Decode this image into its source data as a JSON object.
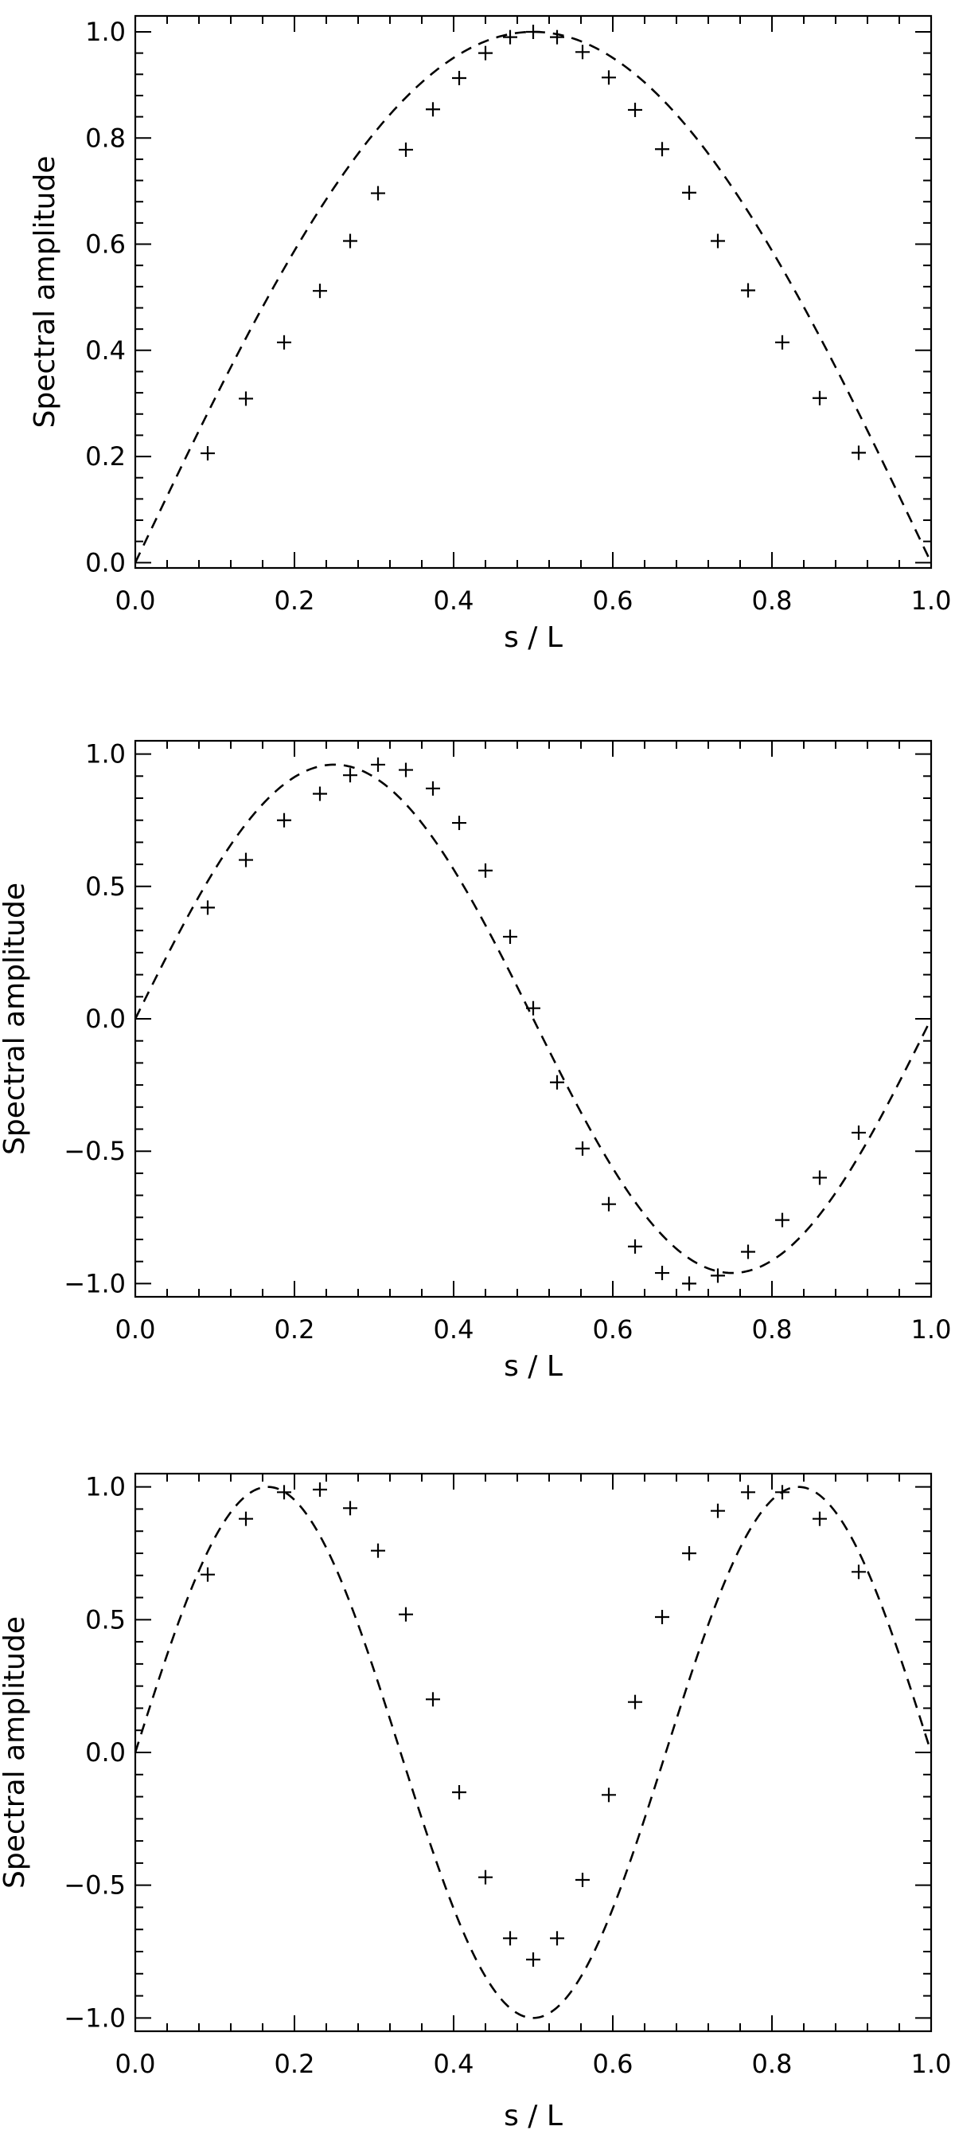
{
  "chart_data": [
    {
      "type": "scatter",
      "xlabel": "s / L",
      "ylabel": "Spectral amplitude",
      "xlim": [
        0,
        1
      ],
      "ylim": [
        -0.01,
        1.03
      ],
      "xticks": [
        "0.0",
        "0.2",
        "0.4",
        "0.6",
        "0.8",
        "1.0"
      ],
      "yticks": [
        "0.0",
        "0.2",
        "0.4",
        "0.6",
        "0.8",
        "1.0"
      ],
      "xtick_values": [
        0,
        0.2,
        0.4,
        0.6,
        0.8,
        1.0
      ],
      "ytick_values": [
        0,
        0.2,
        0.4,
        0.6,
        0.8,
        1.0
      ],
      "minor_xticks": 4,
      "minor_yticks": 4,
      "curve": {
        "style": "dashed",
        "function": "sin(1*pi*x)",
        "k": 1
      },
      "series": [
        {
          "marker": "plus",
          "x": [
            0.091,
            0.139,
            0.187,
            0.232,
            0.27,
            0.305,
            0.34,
            0.374,
            0.407,
            0.44,
            0.471,
            0.5,
            0.53,
            0.562,
            0.595,
            0.628,
            0.662,
            0.696,
            0.732,
            0.77,
            0.813,
            0.86,
            0.909
          ],
          "y": [
            0.206,
            0.309,
            0.415,
            0.512,
            0.606,
            0.696,
            0.778,
            0.854,
            0.913,
            0.96,
            0.99,
            1.0,
            0.99,
            0.962,
            0.914,
            0.853,
            0.779,
            0.697,
            0.606,
            0.513,
            0.415,
            0.31,
            0.207
          ]
        }
      ]
    },
    {
      "type": "scatter",
      "xlabel": "s / L",
      "ylabel": "Spectral amplitude",
      "xlim": [
        0,
        1
      ],
      "ylim": [
        -1.05,
        1.05
      ],
      "xticks": [
        "0.0",
        "0.2",
        "0.4",
        "0.6",
        "0.8",
        "1.0"
      ],
      "yticks": [
        "−1.0",
        "−0.5",
        "0.0",
        "0.5",
        "1.0"
      ],
      "xtick_values": [
        0,
        0.2,
        0.4,
        0.6,
        0.8,
        1.0
      ],
      "ytick_values": [
        -1.0,
        -0.5,
        0,
        0.5,
        1.0
      ],
      "minor_xticks": 4,
      "minor_yticks": 5,
      "curve": {
        "style": "dashed",
        "function": "0.96*sin(2*pi*x)",
        "k": 2,
        "amp": 0.96
      },
      "series": [
        {
          "marker": "plus",
          "x": [
            0.091,
            0.139,
            0.187,
            0.232,
            0.27,
            0.305,
            0.34,
            0.374,
            0.407,
            0.44,
            0.471,
            0.5,
            0.53,
            0.562,
            0.595,
            0.628,
            0.662,
            0.696,
            0.732,
            0.77,
            0.813,
            0.86,
            0.909
          ],
          "y": [
            0.42,
            0.6,
            0.75,
            0.85,
            0.92,
            0.96,
            0.94,
            0.87,
            0.74,
            0.56,
            0.31,
            0.04,
            -0.24,
            -0.49,
            -0.7,
            -0.86,
            -0.96,
            -1.0,
            -0.97,
            -0.88,
            -0.76,
            -0.6,
            -0.43
          ]
        }
      ]
    },
    {
      "type": "scatter",
      "xlabel": "s / L",
      "ylabel": "Spectral amplitude",
      "xlim": [
        0,
        1
      ],
      "ylim": [
        -1.05,
        1.05
      ],
      "xticks": [
        "0.0",
        "0.2",
        "0.4",
        "0.6",
        "0.8",
        "1.0"
      ],
      "yticks": [
        "−1.0",
        "−0.5",
        "0.0",
        "0.5",
        "1.0"
      ],
      "xtick_values": [
        0,
        0.2,
        0.4,
        0.6,
        0.8,
        1.0
      ],
      "ytick_values": [
        -1.0,
        -0.5,
        0,
        0.5,
        1.0
      ],
      "minor_xticks": 4,
      "minor_yticks": 5,
      "curve": {
        "style": "dashed",
        "function": "sin(3*pi*x)",
        "k": 3
      },
      "series": [
        {
          "marker": "plus",
          "x": [
            0.091,
            0.139,
            0.187,
            0.232,
            0.27,
            0.305,
            0.34,
            0.374,
            0.407,
            0.44,
            0.471,
            0.5,
            0.53,
            0.562,
            0.595,
            0.628,
            0.662,
            0.696,
            0.732,
            0.77,
            0.813,
            0.86,
            0.909
          ],
          "y": [
            0.67,
            0.88,
            0.98,
            0.99,
            0.92,
            0.76,
            0.52,
            0.2,
            -0.15,
            -0.47,
            -0.7,
            -0.78,
            -0.7,
            -0.48,
            -0.16,
            0.19,
            0.51,
            0.75,
            0.91,
            0.98,
            0.98,
            0.88,
            0.68
          ]
        }
      ]
    }
  ]
}
